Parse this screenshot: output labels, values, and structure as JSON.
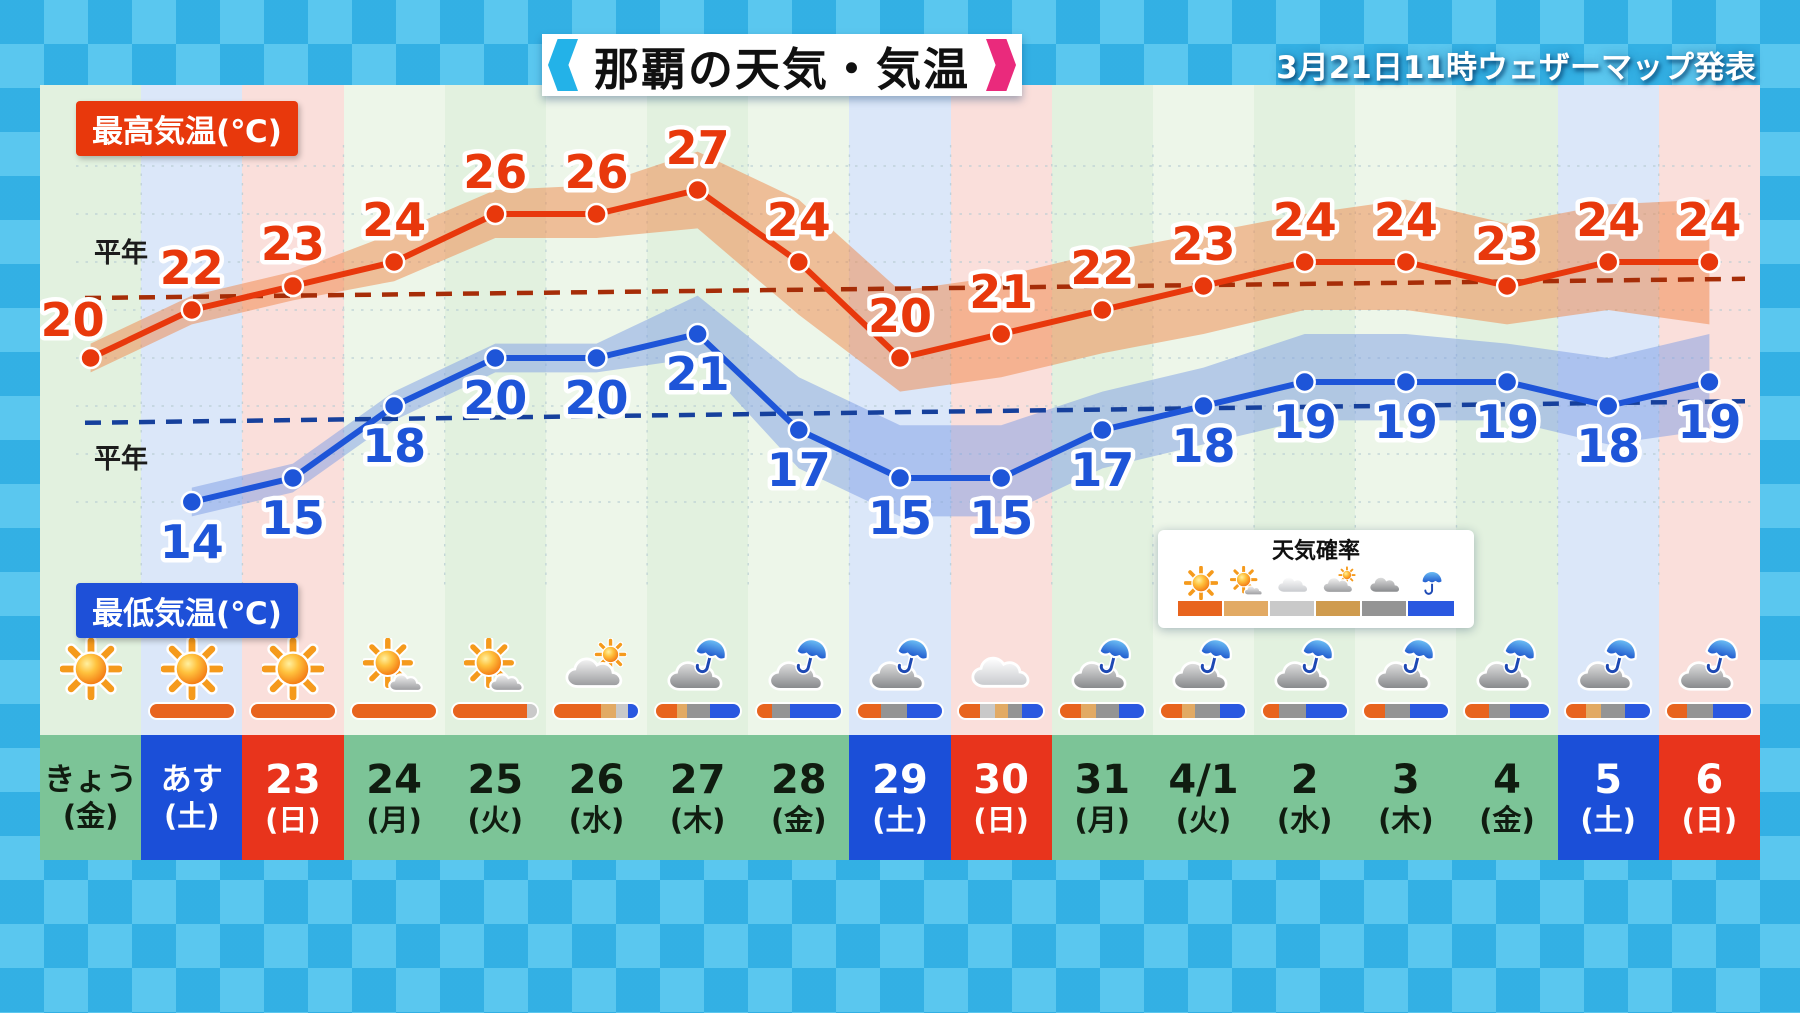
{
  "header": {
    "title": "那覇の天気・気温",
    "announcement": "3月21日11時ウェザーマップ発表"
  },
  "labels": {
    "max_temp": "最高気温(℃)",
    "min_temp": "最低気温(℃)",
    "normal_high": "平年",
    "normal_low": "平年"
  },
  "legend": {
    "title": "天気確率",
    "items": [
      {
        "icon": "sun",
        "color": "#e8641e"
      },
      {
        "icon": "sun-cloud",
        "color": "#e2aa64"
      },
      {
        "icon": "cloud",
        "color": "#c9c9c9"
      },
      {
        "icon": "cloud-sun",
        "color": "#cf9b4e"
      },
      {
        "icon": "cloud-dark",
        "color": "#949494"
      },
      {
        "icon": "umbrella",
        "color": "#2a58e0"
      }
    ]
  },
  "prob_colors": {
    "sun": "#e8641e",
    "sun-cloud": "#e2aa64",
    "cloud": "#c9c9c9",
    "cloud-sun": "#cf9b4e",
    "cloud-dark": "#949494",
    "rain": "#2a58e0"
  },
  "chart_data": {
    "type": "line",
    "title": "那覇の天気・気温",
    "categories": [
      "きょう(金)",
      "あす(土)",
      "23(日)",
      "24(月)",
      "25(火)",
      "26(水)",
      "27(木)",
      "28(金)",
      "29(土)",
      "30(日)",
      "31(月)",
      "4/1(火)",
      "2(水)",
      "3(木)",
      "4(金)",
      "5(土)",
      "6(日)"
    ],
    "series": [
      {
        "name": "最高気温(℃)",
        "color": "#e8380c",
        "values": [
          20,
          22,
          23,
          24,
          26,
          26,
          27,
          24,
          20,
          21,
          22,
          23,
          24,
          24,
          23,
          24,
          24
        ]
      },
      {
        "name": "最低気温(℃)",
        "color": "#1e55d8",
        "values": [
          null,
          14,
          15,
          18,
          20,
          20,
          21,
          17,
          15,
          15,
          17,
          18,
          19,
          19,
          19,
          18,
          19
        ]
      }
    ],
    "bands": [
      {
        "series": "最高気温(℃)",
        "color": "#f08648",
        "upper": [
          20.6,
          22.6,
          23.6,
          25.2,
          27,
          27.2,
          28.6,
          26.6,
          22.8,
          23.4,
          24.4,
          25.2,
          26,
          26.6,
          25.6,
          26.4,
          26.6
        ],
        "lower": [
          19.4,
          21.4,
          22.4,
          23.2,
          25,
          25,
          25.4,
          21.8,
          18.6,
          19.2,
          20.2,
          21,
          22,
          22,
          21.4,
          22,
          21.4
        ]
      },
      {
        "series": "最低気温(℃)",
        "color": "#7e9ee6",
        "upper": [
          null,
          14.6,
          15.6,
          18.6,
          20.6,
          20.6,
          22.6,
          19.2,
          17.2,
          17.2,
          18.6,
          19.6,
          21,
          21,
          20.6,
          20,
          21
        ],
        "lower": [
          null,
          13.4,
          14.4,
          17.4,
          19.4,
          19.4,
          20,
          15.4,
          13.4,
          13.4,
          15.4,
          16.4,
          17.4,
          17.4,
          17.4,
          16.4,
          17
        ]
      }
    ],
    "normals": [
      {
        "label": "平年",
        "series": "high",
        "color": "#a62d08",
        "start": 22.5,
        "end": 23.3
      },
      {
        "label": "平年",
        "series": "low",
        "color": "#16409c",
        "start": 17.3,
        "end": 18.2
      }
    ],
    "xlabel": "",
    "ylabel": "気温(℃)",
    "ylim": [
      12,
      29
    ],
    "grid": true,
    "legend_position": "in-plot-left"
  },
  "days": [
    {
      "date": "きょう",
      "weekday": "(金)",
      "type": "weekday",
      "icon": "sun",
      "prob": []
    },
    {
      "date": "あす",
      "weekday": "(土)",
      "type": "sat",
      "icon": "sun",
      "prob": [
        [
          "sun",
          100
        ]
      ]
    },
    {
      "date": "23",
      "weekday": "(日)",
      "type": "sun",
      "icon": "sun",
      "prob": [
        [
          "sun",
          100
        ]
      ]
    },
    {
      "date": "24",
      "weekday": "(月)",
      "type": "weekday",
      "icon": "sun-cloud",
      "prob": [
        [
          "sun",
          100
        ]
      ]
    },
    {
      "date": "25",
      "weekday": "(火)",
      "type": "weekday",
      "icon": "sun-cloud",
      "prob": [
        [
          "sun",
          88
        ],
        [
          "cloud",
          12
        ]
      ]
    },
    {
      "date": "26",
      "weekday": "(水)",
      "type": "weekday",
      "icon": "cloud-sun",
      "prob": [
        [
          "sun",
          55
        ],
        [
          "sun-cloud",
          18
        ],
        [
          "cloud",
          15
        ],
        [
          "rain",
          12
        ]
      ]
    },
    {
      "date": "27",
      "weekday": "(木)",
      "type": "weekday",
      "icon": "cloud-rain",
      "prob": [
        [
          "sun",
          25
        ],
        [
          "sun-cloud",
          12
        ],
        [
          "cloud-dark",
          28
        ],
        [
          "rain",
          35
        ]
      ]
    },
    {
      "date": "28",
      "weekday": "(金)",
      "type": "weekday",
      "icon": "cloud-rain",
      "prob": [
        [
          "sun",
          18
        ],
        [
          "cloud-dark",
          22
        ],
        [
          "rain",
          60
        ]
      ]
    },
    {
      "date": "29",
      "weekday": "(土)",
      "type": "sat",
      "icon": "cloud-rain",
      "prob": [
        [
          "sun",
          28
        ],
        [
          "cloud-dark",
          30
        ],
        [
          "rain",
          42
        ]
      ]
    },
    {
      "date": "30",
      "weekday": "(日)",
      "type": "sun",
      "icon": "cloud",
      "prob": [
        [
          "sun",
          25
        ],
        [
          "cloud",
          18
        ],
        [
          "sun-cloud",
          15
        ],
        [
          "cloud-dark",
          17
        ],
        [
          "rain",
          25
        ]
      ]
    },
    {
      "date": "31",
      "weekday": "(月)",
      "type": "weekday",
      "icon": "cloud-rain",
      "prob": [
        [
          "sun",
          25
        ],
        [
          "sun-cloud",
          18
        ],
        [
          "cloud-dark",
          27
        ],
        [
          "rain",
          30
        ]
      ]
    },
    {
      "date": "4/1",
      "weekday": "(火)",
      "type": "weekday",
      "icon": "cloud-rain",
      "prob": [
        [
          "sun",
          24
        ],
        [
          "sun-cloud",
          16
        ],
        [
          "cloud-dark",
          30
        ],
        [
          "rain",
          30
        ]
      ]
    },
    {
      "date": "2",
      "weekday": "(水)",
      "type": "weekday",
      "icon": "cloud-rain",
      "prob": [
        [
          "sun",
          20
        ],
        [
          "cloud-dark",
          32
        ],
        [
          "rain",
          48
        ]
      ]
    },
    {
      "date": "3",
      "weekday": "(木)",
      "type": "weekday",
      "icon": "cloud-rain",
      "prob": [
        [
          "sun",
          25
        ],
        [
          "cloud-dark",
          30
        ],
        [
          "rain",
          45
        ]
      ]
    },
    {
      "date": "4",
      "weekday": "(金)",
      "type": "weekday",
      "icon": "cloud-rain",
      "prob": [
        [
          "sun",
          28
        ],
        [
          "cloud-dark",
          26
        ],
        [
          "rain",
          46
        ]
      ]
    },
    {
      "date": "5",
      "weekday": "(土)",
      "type": "sat",
      "icon": "cloud-rain",
      "prob": [
        [
          "sun",
          24
        ],
        [
          "sun-cloud",
          18
        ],
        [
          "cloud-dark",
          28
        ],
        [
          "rain",
          30
        ]
      ]
    },
    {
      "date": "6",
      "weekday": "(日)",
      "type": "sun",
      "icon": "cloud-rain",
      "prob": [
        [
          "sun",
          24
        ],
        [
          "cloud-dark",
          30
        ],
        [
          "rain",
          46
        ]
      ]
    }
  ]
}
